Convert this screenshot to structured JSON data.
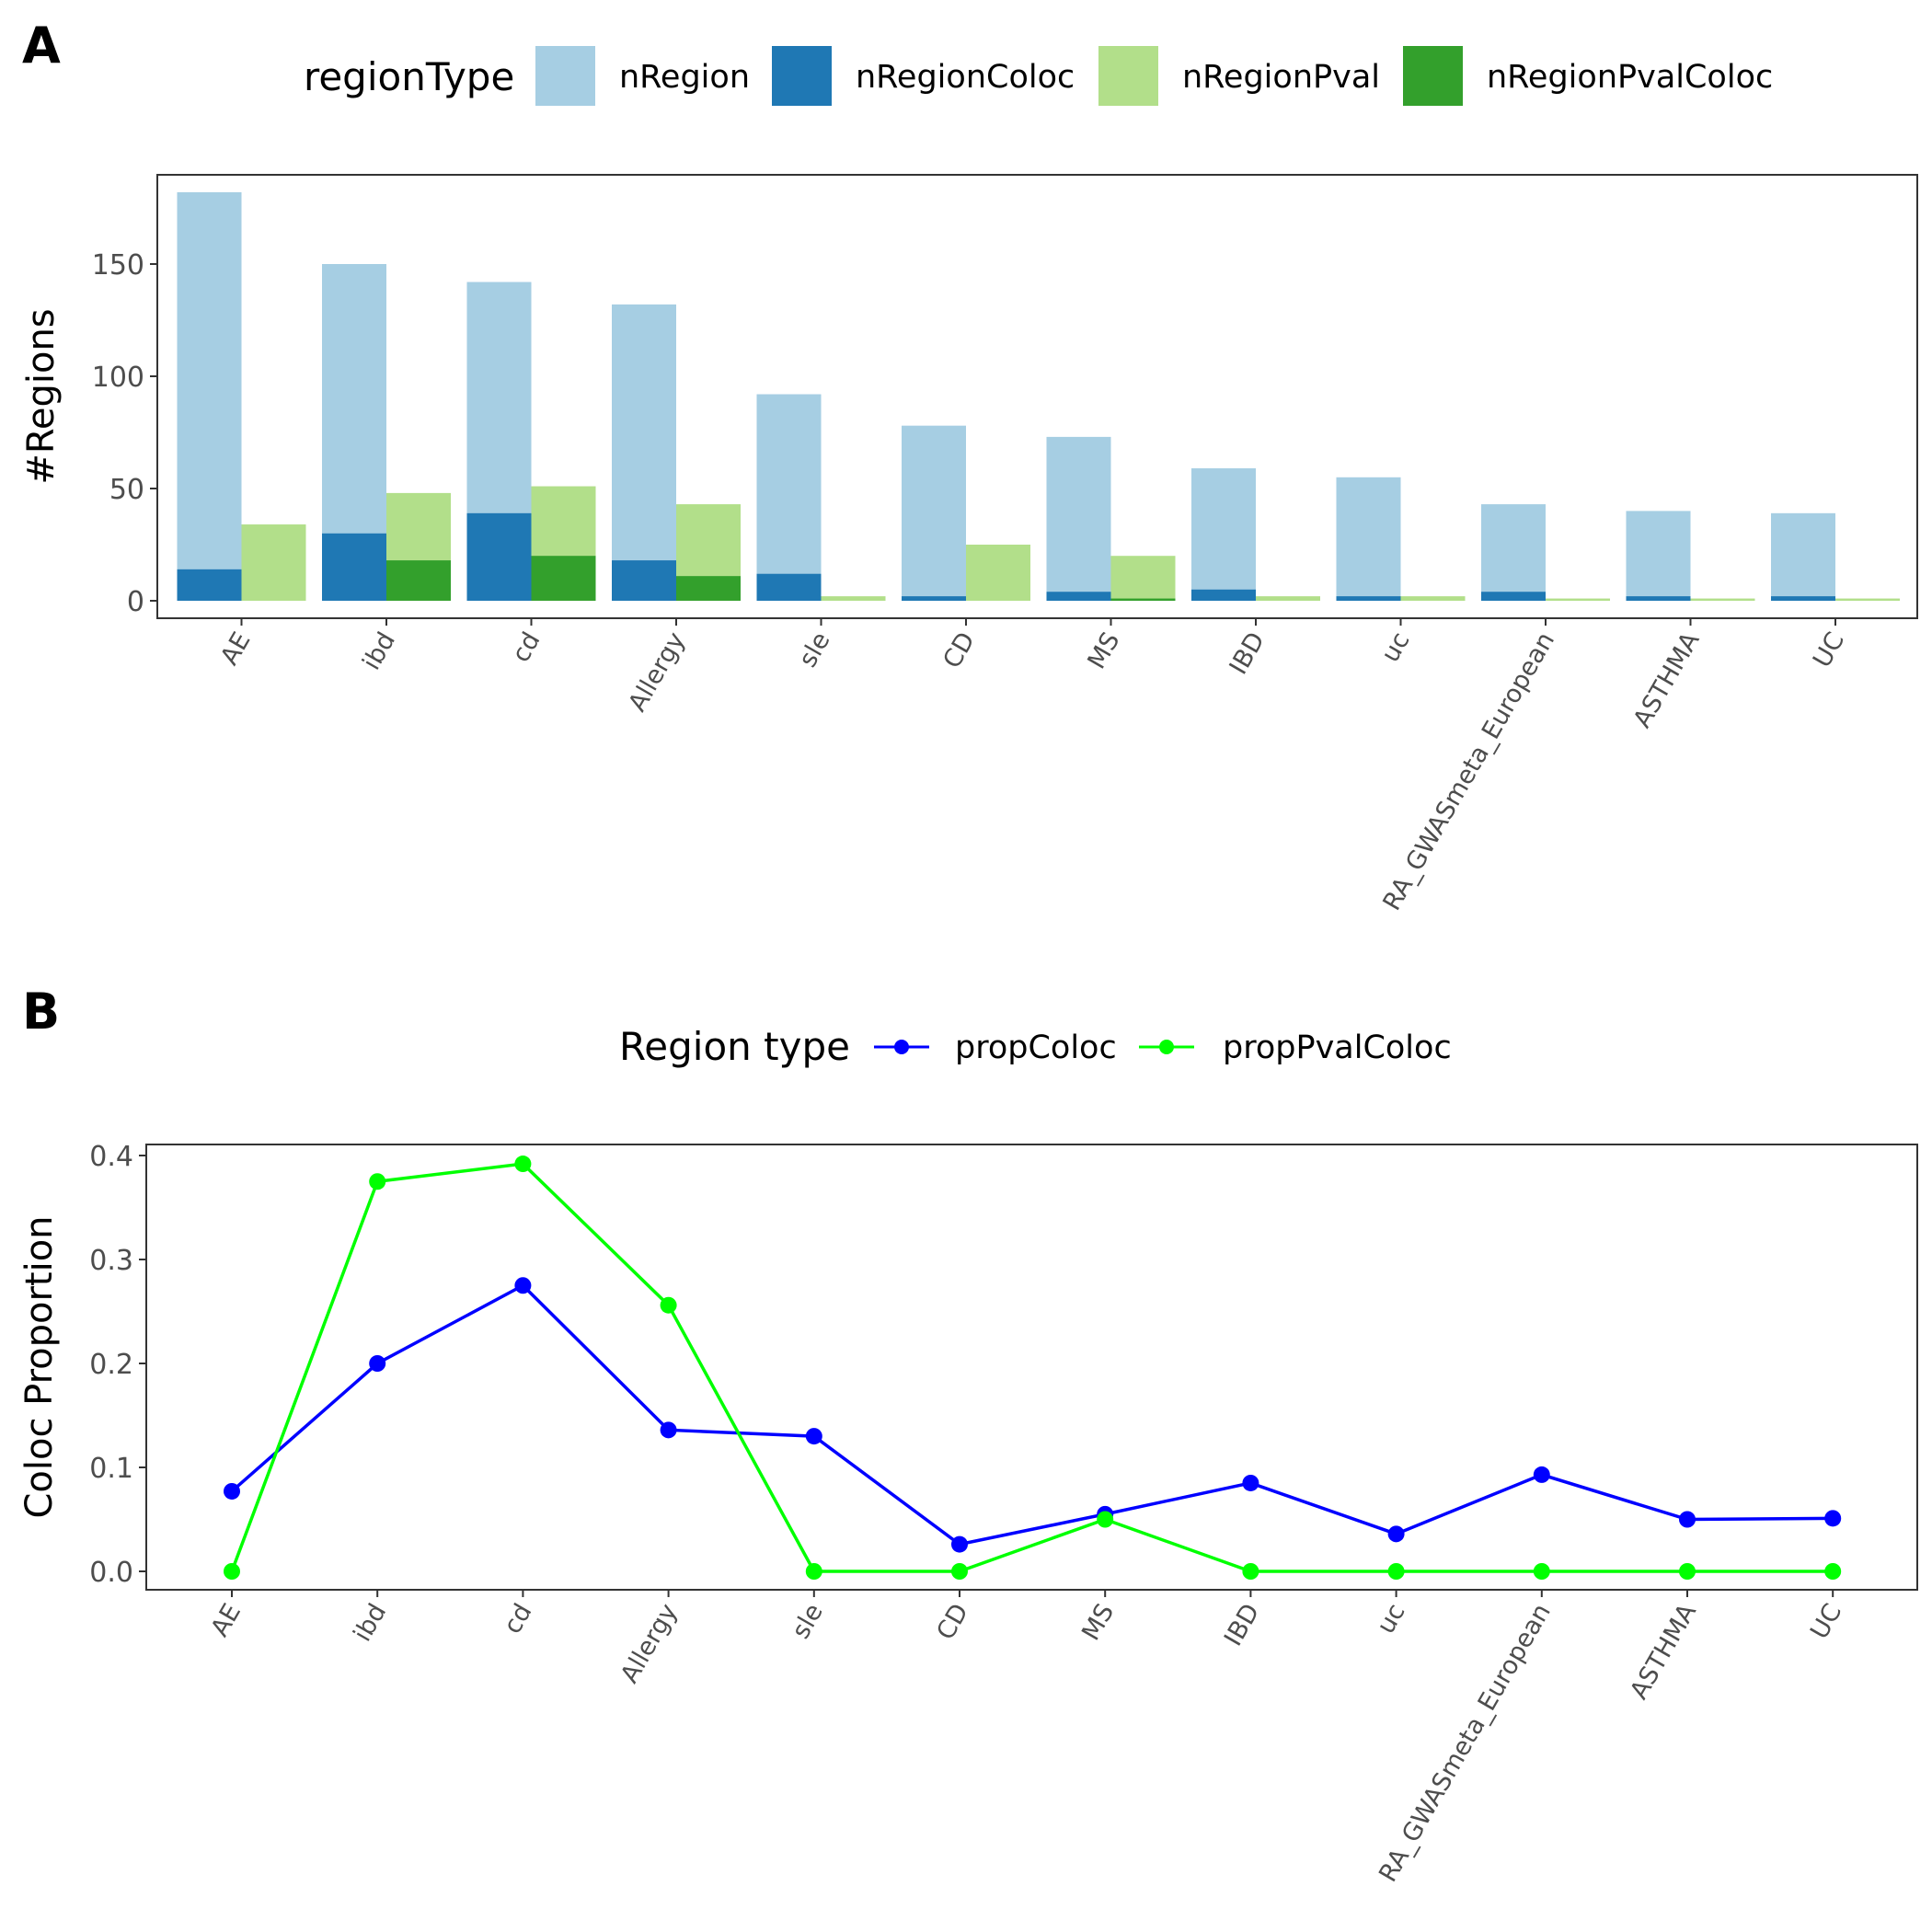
{
  "chart_data": [
    {
      "panel_label": "A",
      "type": "bar",
      "categories": [
        "AE",
        "ibd",
        "cd",
        "Allergy",
        "sle",
        "CD",
        "MS",
        "IBD",
        "uc",
        "RA_GWASmeta_European",
        "ASTHMA",
        "UC"
      ],
      "ylabel": "#Regions",
      "xlabel": "",
      "ylim": [
        0,
        190
      ],
      "yticks": [
        0,
        50,
        100,
        150
      ],
      "legend": {
        "title": "regionType",
        "position": "top"
      },
      "series": [
        {
          "name": "nRegion",
          "color": "#a6cee3",
          "values": [
            182,
            150,
            142,
            132,
            92,
            78,
            73,
            59,
            55,
            43,
            40,
            39
          ]
        },
        {
          "name": "nRegionColoc",
          "color": "#1f78b4",
          "values": [
            14,
            30,
            39,
            18,
            12,
            2,
            4,
            5,
            2,
            4,
            2,
            2
          ]
        },
        {
          "name": "nRegionPval",
          "color": "#b2df8a",
          "values": [
            34,
            48,
            51,
            43,
            2,
            25,
            20,
            2,
            2,
            1,
            1,
            1
          ]
        },
        {
          "name": "nRegionPvalColoc",
          "color": "#33a02c",
          "values": [
            0,
            18,
            20,
            11,
            0,
            0,
            1,
            0,
            0,
            0,
            0,
            0
          ]
        }
      ]
    },
    {
      "panel_label": "B",
      "type": "line",
      "categories": [
        "AE",
        "ibd",
        "cd",
        "Allergy",
        "sle",
        "CD",
        "MS",
        "IBD",
        "uc",
        "RA_GWASmeta_European",
        "ASTHMA",
        "UC"
      ],
      "ylabel": "Coloc Proportion",
      "xlabel": "",
      "ylim": [
        -0.018,
        0.41
      ],
      "yticks": [
        "0.0",
        "0.1",
        "0.2",
        "0.3",
        "0.4"
      ],
      "legend": {
        "title": "Region type",
        "position": "top"
      },
      "series": [
        {
          "name": "propColoc",
          "color": "#0000ff",
          "values": [
            0.077,
            0.2,
            0.275,
            0.136,
            0.13,
            0.026,
            0.055,
            0.085,
            0.036,
            0.093,
            0.05,
            0.051
          ]
        },
        {
          "name": "propPvalColoc",
          "color": "#00ff00",
          "values": [
            0,
            0.375,
            0.392,
            0.256,
            0,
            0,
            0.05,
            0,
            0,
            0,
            0,
            0
          ]
        }
      ]
    }
  ]
}
